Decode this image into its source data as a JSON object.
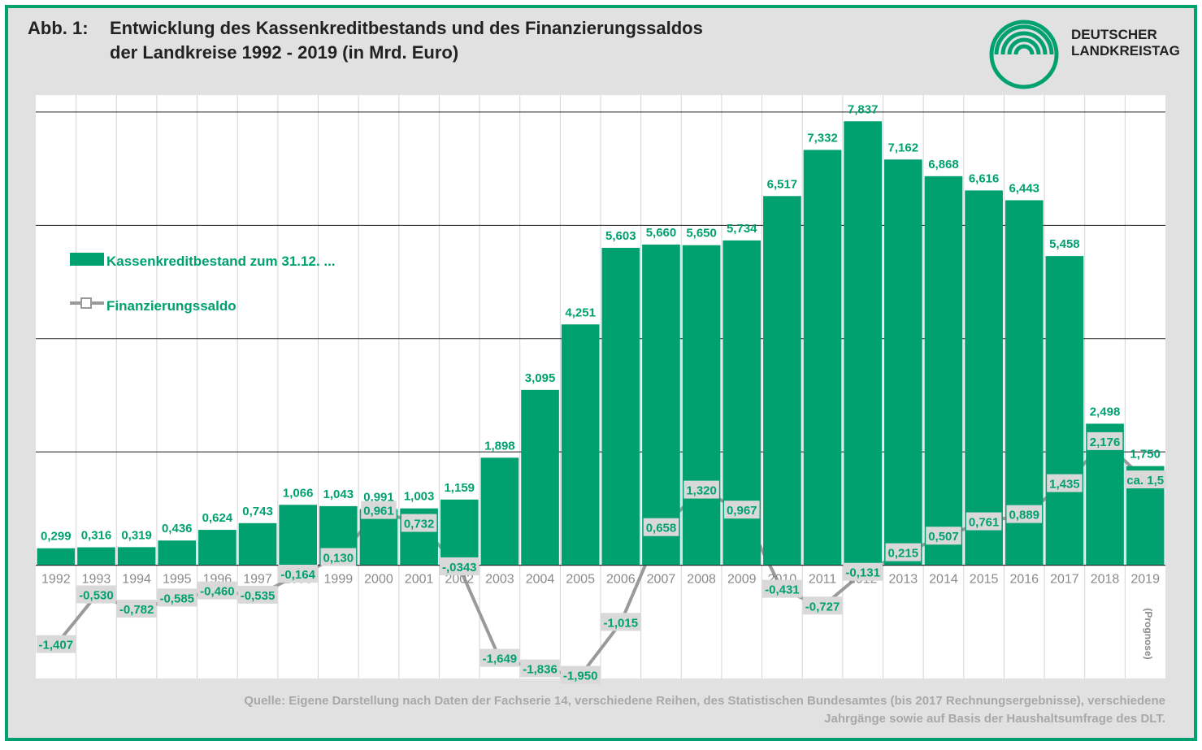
{
  "chart_data": {
    "type": "bar-line",
    "figure_label": "Abb. 1:",
    "title": [
      "Entwicklung des Kassenkreditbestands und des Finanzierungssaldos",
      "der Landkreise 1992 - 2019 (in Mrd. Euro)"
    ],
    "logo": [
      "DEUTSCHER",
      "LANDKREISTAG"
    ],
    "annotation": "(Prognose)",
    "source": [
      "Quelle: Eigene Darstellung nach Daten der Fachserie 14, verschiedene Reihen, des Statistischen Bundesamtes (bis 2017 Rechnungsergebnisse), verschiedene",
      "Jahrgänge sowie auf Basis der Haushaltsumfrage des DLT."
    ],
    "categories": [
      "1992",
      "1993",
      "1994",
      "1995",
      "1996",
      "1997",
      "1998",
      "1999",
      "2000",
      "2001",
      "2002",
      "2003",
      "2004",
      "2005",
      "2006",
      "2007",
      "2008",
      "2009",
      "2010",
      "2011",
      "2012",
      "2013",
      "2014",
      "2015",
      "2016",
      "2017",
      "2018",
      "2019"
    ],
    "ylim": [
      -2,
      8.3
    ],
    "yticks": [
      0,
      2,
      4,
      6,
      8
    ],
    "grid": true,
    "series": [
      {
        "name": "Kassenkreditbestand zum 31.12. ...",
        "type": "bar",
        "color": "#00a16f",
        "values": [
          0.299,
          0.316,
          0.319,
          0.436,
          0.624,
          0.743,
          1.066,
          1.043,
          0.991,
          1.003,
          1.159,
          1.898,
          3.095,
          4.251,
          5.603,
          5.66,
          5.65,
          5.734,
          6.517,
          7.332,
          7.837,
          7.162,
          6.868,
          6.616,
          6.443,
          5.458,
          2.498,
          1.75
        ],
        "value_labels": [
          "0,299",
          "0,316",
          "0,319",
          "0,436",
          "0,624",
          "0,743",
          "1,066",
          "1,043",
          "0,991",
          "1,003",
          "1,159",
          "1,898",
          "3,095",
          "4,251",
          "5,603",
          "5,660",
          "5,650",
          "5,734",
          "6,517",
          "7,332",
          "7,837",
          "7,162",
          "6,868",
          "6,616",
          "6,443",
          "5,458",
          "2,498",
          "1,750"
        ]
      },
      {
        "name": "Finanzierungssaldo",
        "type": "line",
        "color": "#9a9a9a",
        "values": [
          -1.407,
          -0.53,
          -0.782,
          -0.585,
          -0.46,
          -0.535,
          -0.164,
          0.13,
          0.961,
          0.732,
          -0.0343,
          -1.649,
          -1.836,
          -1.95,
          -1.015,
          0.658,
          1.32,
          0.967,
          -0.431,
          -0.727,
          -0.131,
          0.215,
          0.507,
          0.761,
          0.889,
          1.435,
          2.176,
          1.5
        ],
        "value_labels": [
          "-1,407",
          "-0,530",
          "-0,782",
          "-0,585",
          "-0,460",
          "-0,535",
          "-0,164",
          "0,130",
          "0,961",
          "0,732",
          "-,0343",
          "-1,649",
          "-1,836",
          "-1,950",
          "-1,015",
          "0,658",
          "1,320",
          "0,967",
          "-0,431",
          "-0,727",
          "-0,131",
          "0,215",
          "0,507",
          "0,761",
          "0,889",
          "1,435",
          "2,176",
          "ca. 1,5"
        ]
      }
    ]
  }
}
